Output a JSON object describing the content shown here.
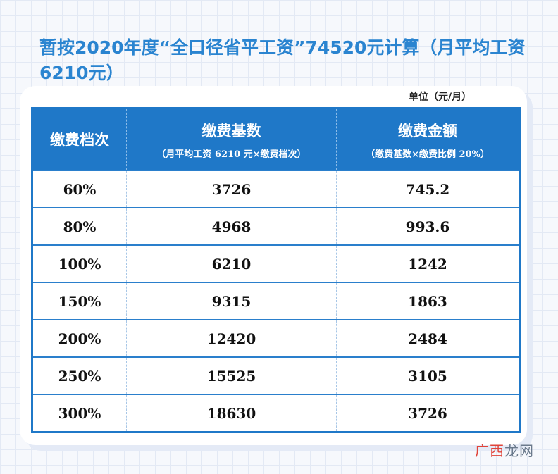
{
  "title": "暂按2020年度“全口径省平工资”74520元计算（月平均工资6210元）",
  "unit": "单位（元/月）",
  "table": {
    "headers": [
      {
        "main": "缴费档次",
        "sub": ""
      },
      {
        "main": "缴费基数",
        "sub": "（月平均工资 6210 元×缴费档次）"
      },
      {
        "main": "缴费金额",
        "sub": "（缴费基数×缴费比例 20%）"
      }
    ],
    "rows": [
      {
        "level": "60%",
        "base": "3726",
        "amount": "745.2"
      },
      {
        "level": "80%",
        "base": "4968",
        "amount": "993.6"
      },
      {
        "level": "100%",
        "base": "6210",
        "amount": "1242"
      },
      {
        "level": "150%",
        "base": "9315",
        "amount": "1863"
      },
      {
        "level": "200%",
        "base": "12420",
        "amount": "2484"
      },
      {
        "level": "250%",
        "base": "15525",
        "amount": "3105"
      },
      {
        "level": "300%",
        "base": "18630",
        "amount": "3726"
      }
    ]
  },
  "watermark": {
    "accent": "广西",
    "rest": "龙网"
  },
  "colors": {
    "accent": "#1f78c8",
    "title": "#2a84d0"
  }
}
